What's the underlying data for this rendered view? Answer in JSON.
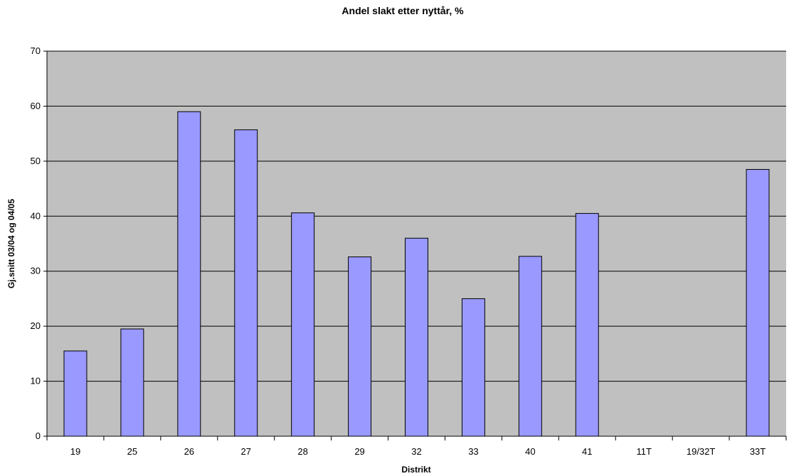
{
  "chart_data": {
    "type": "bar",
    "title": "Andel slakt etter nyttår, %",
    "xlabel": "Distrikt",
    "ylabel": "Gj.snitt 03/04 og 04/05",
    "categories": [
      "19",
      "25",
      "26",
      "27",
      "28",
      "29",
      "32",
      "33",
      "40",
      "41",
      "11T",
      "19/32T",
      "33T"
    ],
    "values": [
      15.5,
      19.5,
      59,
      55.7,
      40.6,
      32.6,
      36,
      25,
      32.7,
      40.5,
      null,
      null,
      48.5
    ],
    "ylim": [
      0,
      70
    ],
    "yticks": [
      0,
      10,
      20,
      30,
      40,
      50,
      60,
      70
    ],
    "grid": true,
    "legend": "none",
    "colors": {
      "plot_background": "#C0C0C0",
      "bar_fill": "#9999FF",
      "bar_stroke": "#000000",
      "gridline": "#000000"
    }
  }
}
